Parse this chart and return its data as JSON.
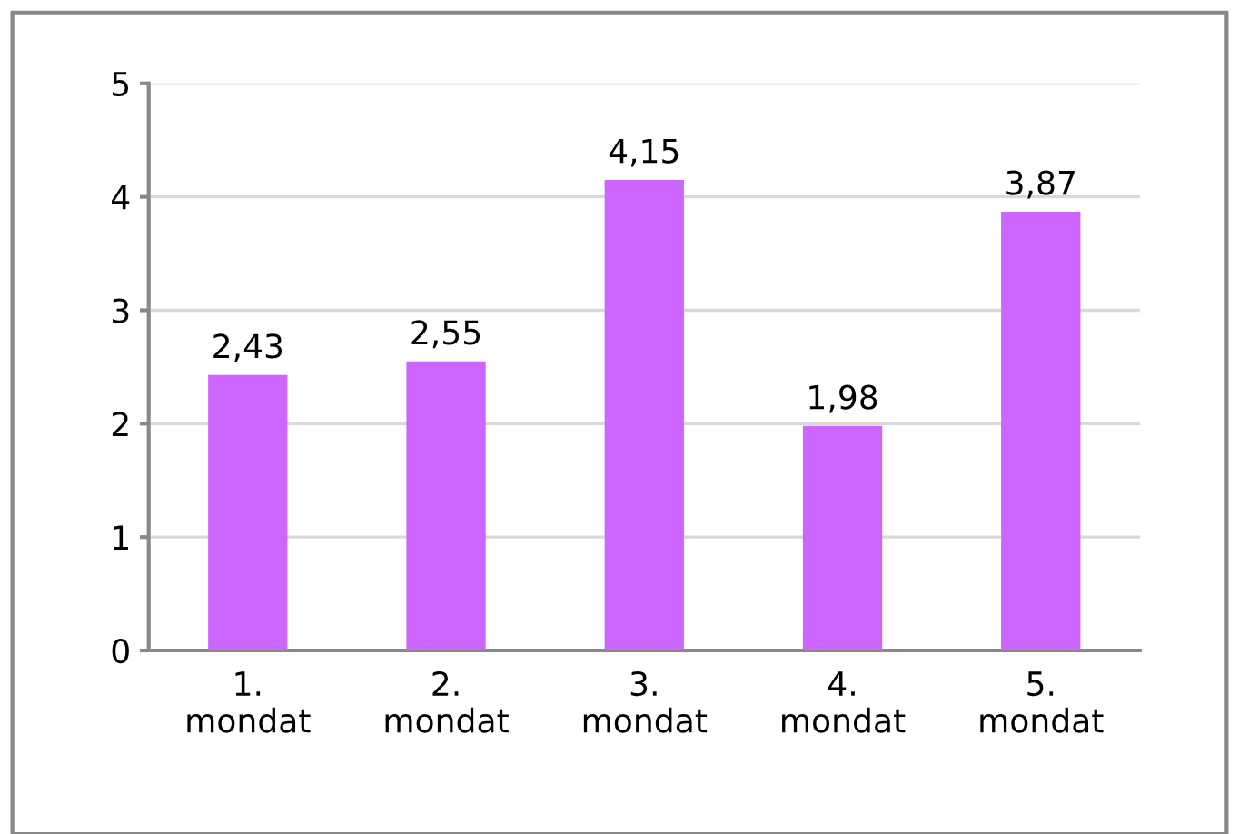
{
  "chart_data": {
    "type": "bar",
    "categories": [
      "1.\nmondat",
      "2.\nmondat",
      "3.\nmondat",
      "4.\nmondat",
      "5.\nmondat"
    ],
    "values": [
      2.43,
      2.55,
      4.15,
      1.98,
      3.87
    ],
    "value_labels": [
      "2,43",
      "2,55",
      "4,15",
      "1,98",
      "3,87"
    ],
    "color": "#cc66ff",
    "ylim": [
      0,
      5
    ],
    "yticks": [
      0,
      1,
      2,
      3,
      4,
      5
    ],
    "grid": "y"
  }
}
